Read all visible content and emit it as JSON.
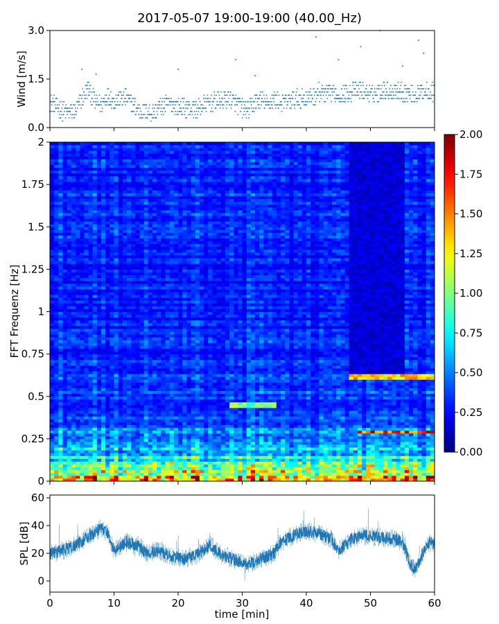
{
  "chart_data": [
    {
      "type": "scatter",
      "panel": "wind",
      "title": "2017-05-07 19:00-19:00 (40.00_Hz)",
      "xlabel": "",
      "ylabel": "Wind [m/s]",
      "xlim": [
        0,
        60
      ],
      "ylim": [
        0,
        3.0
      ],
      "yticks": [
        "0.0",
        "1.5",
        "3.0"
      ],
      "color": "#1f77b4",
      "x": [
        0,
        2,
        4,
        5,
        6,
        7,
        8,
        9,
        10,
        11,
        12,
        13,
        14,
        15,
        16,
        17,
        18,
        19,
        20,
        21,
        22,
        23,
        24,
        25,
        26,
        27,
        28,
        29,
        30,
        31,
        32,
        33,
        34,
        35,
        36,
        37,
        38,
        39,
        40,
        41,
        42,
        43,
        44,
        45,
        46,
        47,
        48,
        49,
        50,
        51,
        52,
        53,
        54,
        55,
        56,
        57,
        58,
        59,
        60
      ],
      "y": [
        0.8,
        0.5,
        0.5,
        0.9,
        1.2,
        0.8,
        0.7,
        1.0,
        0.8,
        0.9,
        0.9,
        0.7,
        0.5,
        0.5,
        0.45,
        0.6,
        0.7,
        0.75,
        0.65,
        0.6,
        0.6,
        0.55,
        0.7,
        0.75,
        0.8,
        0.85,
        0.9,
        0.75,
        0.6,
        0.55,
        0.8,
        0.85,
        0.7,
        0.9,
        0.75,
        0.8,
        0.85,
        0.9,
        0.9,
        0.95,
        1.1,
        1.0,
        1.1,
        1.0,
        1.05,
        1.1,
        1.15,
        1.1,
        1.0,
        1.05,
        1.2,
        1.1,
        1.15,
        1.1,
        1.05,
        1.0,
        1.1,
        1.15,
        1.1
      ],
      "outliers": [
        [
          5.0,
          1.8
        ],
        [
          7.2,
          1.65
        ],
        [
          20.0,
          1.8
        ],
        [
          29.0,
          2.1
        ],
        [
          32.0,
          1.6
        ],
        [
          41.5,
          2.8
        ],
        [
          45.0,
          2.1
        ],
        [
          48.5,
          2.5
        ],
        [
          51.5,
          3.0
        ],
        [
          55.0,
          1.9
        ],
        [
          57.5,
          2.7
        ],
        [
          58.3,
          2.3
        ]
      ]
    },
    {
      "type": "heatmap",
      "panel": "spectrogram",
      "title": "",
      "xlabel": "",
      "ylabel": "FFT Frequenz [Hz]",
      "xlim": [
        0,
        60
      ],
      "ylim": [
        0,
        2
      ],
      "yticks": [
        "0",
        "0.25",
        "0.5",
        "0.75",
        "1",
        "1.25",
        "1.5",
        "1.75",
        "2"
      ],
      "colormap": "jet",
      "clim": [
        0.0,
        2.0
      ],
      "colorbar_ticks": [
        "0.00",
        "0.25",
        "0.50",
        "0.75",
        "1.00",
        "1.25",
        "1.50",
        "1.75",
        "2.00"
      ],
      "freq_profile": {
        "freq": [
          0,
          0.02,
          0.05,
          0.1,
          0.15,
          0.2,
          0.3,
          0.5,
          1.0,
          1.5,
          2.0
        ],
        "level": [
          1.7,
          1.4,
          1.0,
          0.85,
          0.7,
          0.55,
          0.45,
          0.35,
          0.3,
          0.3,
          0.32
        ]
      },
      "bands": [
        {
          "freq": 0.62,
          "t_start": 47,
          "t_end": 60,
          "level": 1.3
        },
        {
          "freq": 0.29,
          "t_start": 48,
          "t_end": 60,
          "level": 1.7
        },
        {
          "freq": 0.45,
          "t_start": 28,
          "t_end": 35,
          "level": 1.0
        }
      ],
      "quiet_region": {
        "t_start": 47,
        "t_end": 55,
        "f_start": 0.6,
        "f_end": 2.0,
        "level": 0.1
      }
    },
    {
      "type": "line",
      "panel": "spl",
      "title": "",
      "xlabel": "time [min]",
      "ylabel": "SPL [dB]",
      "xlim": [
        0,
        60
      ],
      "ylim": [
        -8,
        62
      ],
      "yticks": [
        "0",
        "20",
        "40",
        "60"
      ],
      "xticks": [
        "0",
        "10",
        "20",
        "30",
        "40",
        "50",
        "60"
      ],
      "color": "#1f77b4",
      "x": [
        0,
        2,
        4,
        6,
        8,
        9,
        10,
        12,
        14,
        15,
        17,
        19,
        21,
        23,
        25,
        27,
        29,
        31,
        33,
        35,
        36,
        38,
        40,
        42,
        44,
        45,
        47,
        49,
        51,
        53,
        55,
        56,
        57,
        58,
        59,
        60
      ],
      "y": [
        20,
        22,
        26,
        32,
        38,
        35,
        22,
        28,
        25,
        20,
        22,
        18,
        16,
        19,
        26,
        18,
        15,
        12,
        16,
        20,
        28,
        33,
        36,
        34,
        30,
        22,
        30,
        33,
        32,
        31,
        28,
        14,
        8,
        18,
        28,
        26
      ]
    }
  ]
}
